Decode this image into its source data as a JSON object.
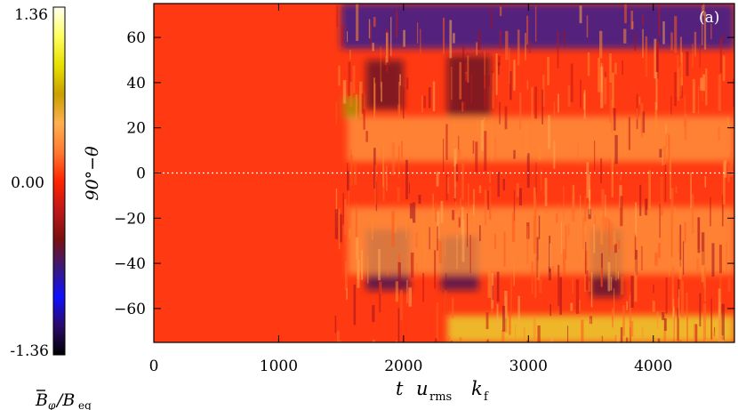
{
  "chart_data": {
    "type": "heatmap",
    "panel_label": "(a)",
    "x": {
      "label_parts": {
        "t": "t",
        "u": "u",
        "u_sub": "rms",
        "k": "k",
        "k_sub": "f"
      },
      "range": [
        0,
        4650
      ],
      "ticks": [
        0,
        1000,
        2000,
        3000,
        4000
      ],
      "tick_labels": [
        "0",
        "1000",
        "2000",
        "3000",
        "4000"
      ]
    },
    "y": {
      "label": "90°−θ",
      "range": [
        -75,
        75
      ],
      "ticks": [
        -60,
        -40,
        -20,
        0,
        20,
        40,
        60
      ],
      "tick_labels": [
        "−60",
        "−40",
        "−20",
        "0",
        "20",
        "40",
        "60"
      ]
    },
    "colorbar": {
      "label_parts": {
        "b": "B",
        "b_sub": "φ",
        "eq": "/B",
        "eq_sub": "eq"
      },
      "range": [
        -1.36,
        1.36
      ],
      "tick_labels": [
        "1.36",
        "0.00",
        "-1.36"
      ],
      "colormap": [
        "#000000",
        "#2a0a6a",
        "#1010ff",
        "#3a1a7a",
        "#7a1010",
        "#c01818",
        "#ff2400",
        "#ff7a30",
        "#ffb050",
        "#c8a000",
        "#e8e000",
        "#ffff60",
        "#fffff0"
      ]
    },
    "onset_time": 1450,
    "equator_line": {
      "y": 0,
      "style": "dotted"
    },
    "features": [
      {
        "name": "blue-patch-north-pole",
        "t_range": [
          1500,
          4650
        ],
        "lat_range": [
          55,
          75
        ],
        "color": "#1818a0"
      },
      {
        "name": "yellow-patch-south-pole",
        "t_range": [
          2350,
          4650
        ],
        "lat_range": [
          -75,
          -63
        ],
        "color": "#e8e030"
      },
      {
        "name": "yellow-green-patch-north",
        "t_range": [
          1520,
          1650
        ],
        "lat_range": [
          24,
          34
        ],
        "color": "#a0a000"
      },
      {
        "name": "dark-patch-north-wave",
        "t_range": [
          1700,
          2000
        ],
        "lat_range": [
          28,
          50
        ],
        "color": "#5a0a2a"
      },
      {
        "name": "dark-patch-north-wave",
        "t_range": [
          2350,
          2700
        ],
        "lat_range": [
          25,
          52
        ],
        "color": "#5a0a2a"
      },
      {
        "name": "dark-patch-south-wave",
        "t_range": [
          1700,
          2050
        ],
        "lat_range": [
          -52,
          -25
        ],
        "color": "#3a0a5a"
      },
      {
        "name": "dark-patch-south-wave",
        "t_range": [
          2300,
          2600
        ],
        "lat_range": [
          -52,
          -28
        ],
        "color": "#3a0a5a"
      },
      {
        "name": "dark-patch-south-wave",
        "t_range": [
          3500,
          3750
        ],
        "lat_range": [
          -55,
          -25
        ],
        "color": "#4a0a3a"
      },
      {
        "name": "light-orange-band",
        "t_range": [
          1550,
          4650
        ],
        "lat_range": [
          5,
          25
        ],
        "color": "#ff9a40"
      },
      {
        "name": "light-orange-band",
        "t_range": [
          1550,
          4650
        ],
        "lat_range": [
          -45,
          -15
        ],
        "color": "#ff9a40"
      }
    ]
  }
}
